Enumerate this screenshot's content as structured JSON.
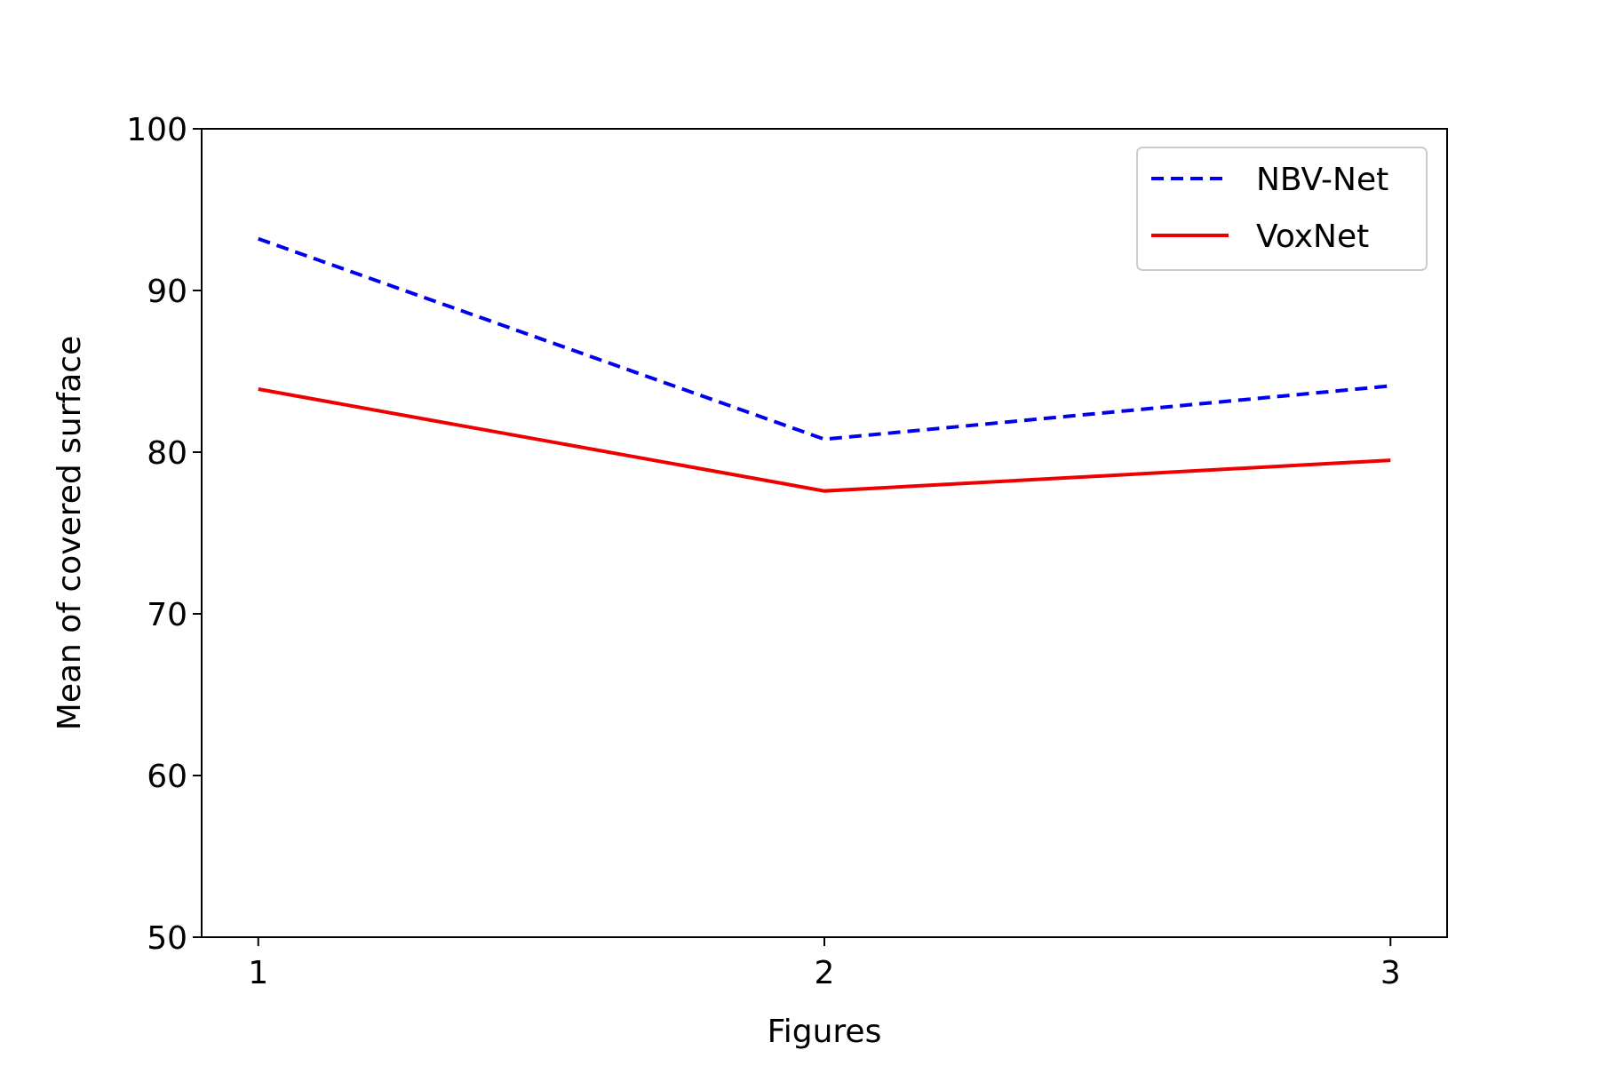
{
  "chart_data": {
    "type": "line",
    "x": [
      1,
      2,
      3
    ],
    "xticks": [
      "1",
      "2",
      "3"
    ],
    "yticks": [
      "50",
      "60",
      "70",
      "80",
      "90",
      "100"
    ],
    "ytick_values": [
      50,
      60,
      70,
      80,
      90,
      100
    ],
    "xlim": [
      0.9,
      3.1
    ],
    "ylim": [
      50,
      100
    ],
    "xlabel": "Figures",
    "ylabel": "Mean of covered surface",
    "grid": false,
    "legend_position": "top-right",
    "series": [
      {
        "name": "NBV-Net",
        "values": [
          93.2,
          80.8,
          84.1
        ],
        "color": "#0000ee",
        "style": "dashed"
      },
      {
        "name": "VoxNet",
        "values": [
          83.9,
          77.6,
          79.5
        ],
        "color": "#ee0000",
        "style": "solid"
      }
    ]
  }
}
